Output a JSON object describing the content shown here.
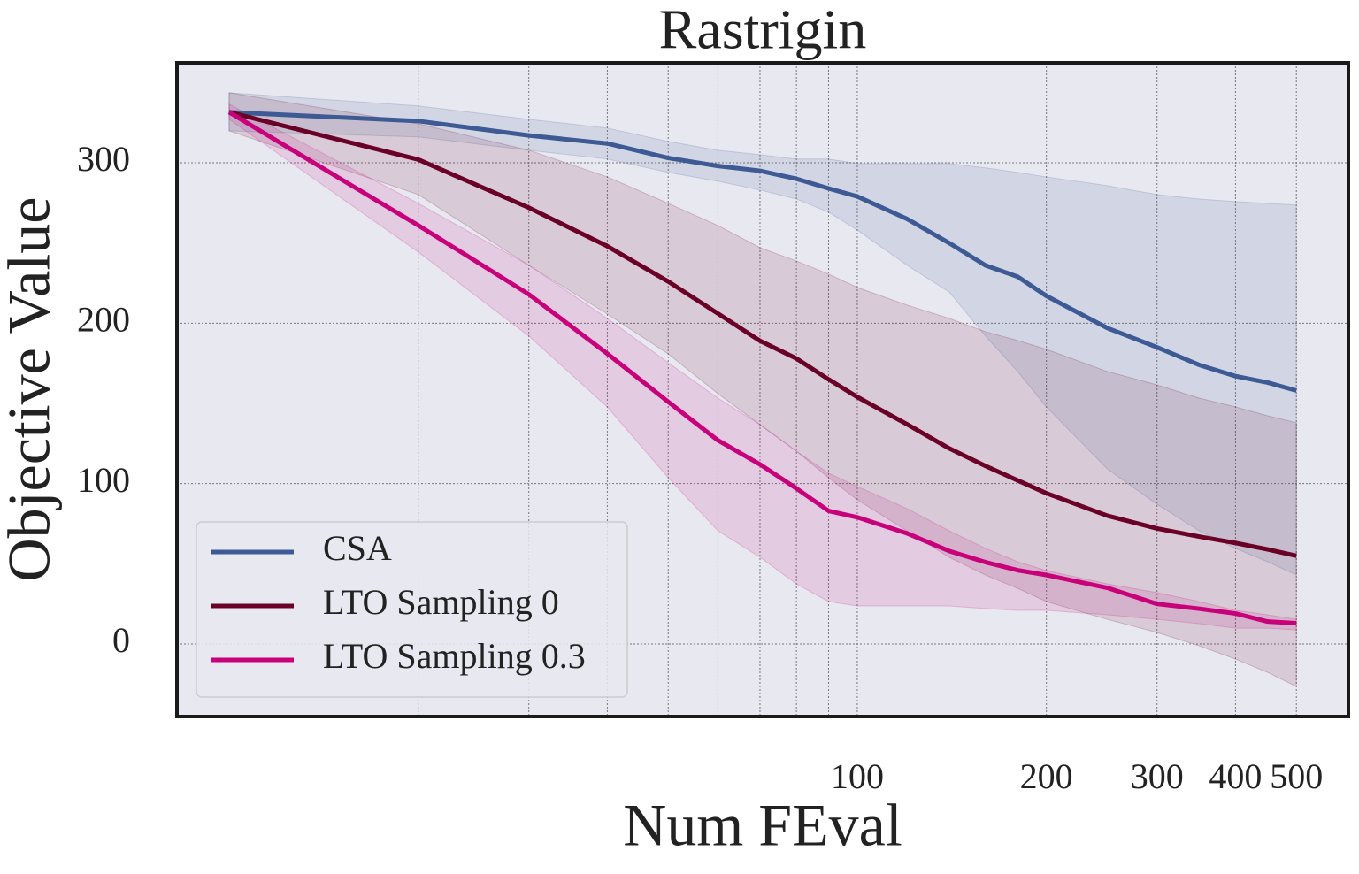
{
  "chart_data": {
    "type": "line",
    "title": "Rastrigin",
    "x_label": "Num FEval",
    "y_label": "Objective Value",
    "x_scale": "log",
    "x": [
      10,
      20,
      30,
      40,
      50,
      60,
      70,
      80,
      90,
      100,
      120,
      140,
      160,
      180,
      200,
      250,
      300,
      350,
      400,
      450,
      500
    ],
    "xlim": [
      8.26,
      605
    ],
    "xticks": [
      100,
      200,
      300,
      400,
      500
    ],
    "xticks_minor": [
      20,
      30,
      40,
      50,
      60,
      70,
      80,
      90
    ],
    "ylim": [
      -45.2,
      362.3
    ],
    "yticks": [
      0,
      100,
      200,
      300
    ],
    "grid": true,
    "legend_position": "lower-left",
    "series": [
      {
        "name": "CSA",
        "color": "#3d5a94",
        "values": [
          331.5,
          326,
          317,
          312,
          303,
          298,
          295,
          290,
          284,
          279,
          265,
          250,
          236,
          229,
          217,
          197,
          185,
          174,
          167,
          163,
          158
        ],
        "upper": [
          343.6,
          335.4,
          327.1,
          321.6,
          313.3,
          307.8,
          305.0,
          302.3,
          302.3,
          299.5,
          299.5,
          299.5,
          296.8,
          294.0,
          291.2,
          285.7,
          280.2,
          277.4,
          275.8,
          274.7,
          273.6
        ],
        "lower": [
          319.9,
          316.1,
          307.8,
          302.3,
          294.0,
          288.5,
          283.0,
          277.4,
          269.2,
          258.1,
          236.1,
          219.5,
          192.0,
          169.9,
          147.8,
          109.2,
          87.1,
          70.6,
          59.6,
          51.3,
          43.0
        ]
      },
      {
        "name": "LTO Sampling 0",
        "color": "#6b0026",
        "values": [
          331.5,
          302,
          272,
          248,
          226,
          206,
          189,
          178,
          165,
          154,
          137,
          122,
          111,
          102,
          94,
          80,
          72,
          67,
          63,
          59,
          55
        ],
        "upper": [
          343.6,
          324.3,
          307.8,
          291.2,
          274.7,
          260.9,
          247.1,
          238.8,
          230.6,
          222.3,
          211.3,
          203.0,
          194.7,
          189.2,
          183.7,
          169.9,
          161.6,
          153.3,
          147.8,
          142.3,
          137.9
        ],
        "lower": [
          319.9,
          280.2,
          236.1,
          205.7,
          180.9,
          156.1,
          136.8,
          120.2,
          103.7,
          89.9,
          70.6,
          54.1,
          43.0,
          34.7,
          26.5,
          15.4,
          7.2,
          -1.1,
          -9.4,
          -17.7,
          -26.5
        ]
      },
      {
        "name": "LTO Sampling 0.3",
        "color": "#c8007a",
        "values": [
          331.5,
          261,
          218,
          181,
          151,
          127,
          112,
          97,
          83,
          79,
          69,
          58,
          51,
          46,
          43,
          35,
          25,
          22,
          19,
          14,
          13
        ],
        "upper": [
          336.5,
          274.7,
          236.1,
          203.0,
          175.4,
          153.3,
          136.8,
          120.2,
          106.5,
          98.2,
          84.4,
          70.6,
          59.6,
          51.3,
          45.8,
          37.5,
          32.0,
          26.5,
          21.0,
          18.2,
          15.4
        ],
        "lower": [
          327.1,
          244.4,
          192.0,
          147.8,
          103.7,
          70.6,
          54.1,
          37.5,
          26.5,
          23.7,
          23.7,
          23.7,
          22.1,
          21.0,
          21.0,
          18.2,
          15.4,
          12.7,
          9.9,
          9.9,
          8.8
        ]
      }
    ]
  }
}
